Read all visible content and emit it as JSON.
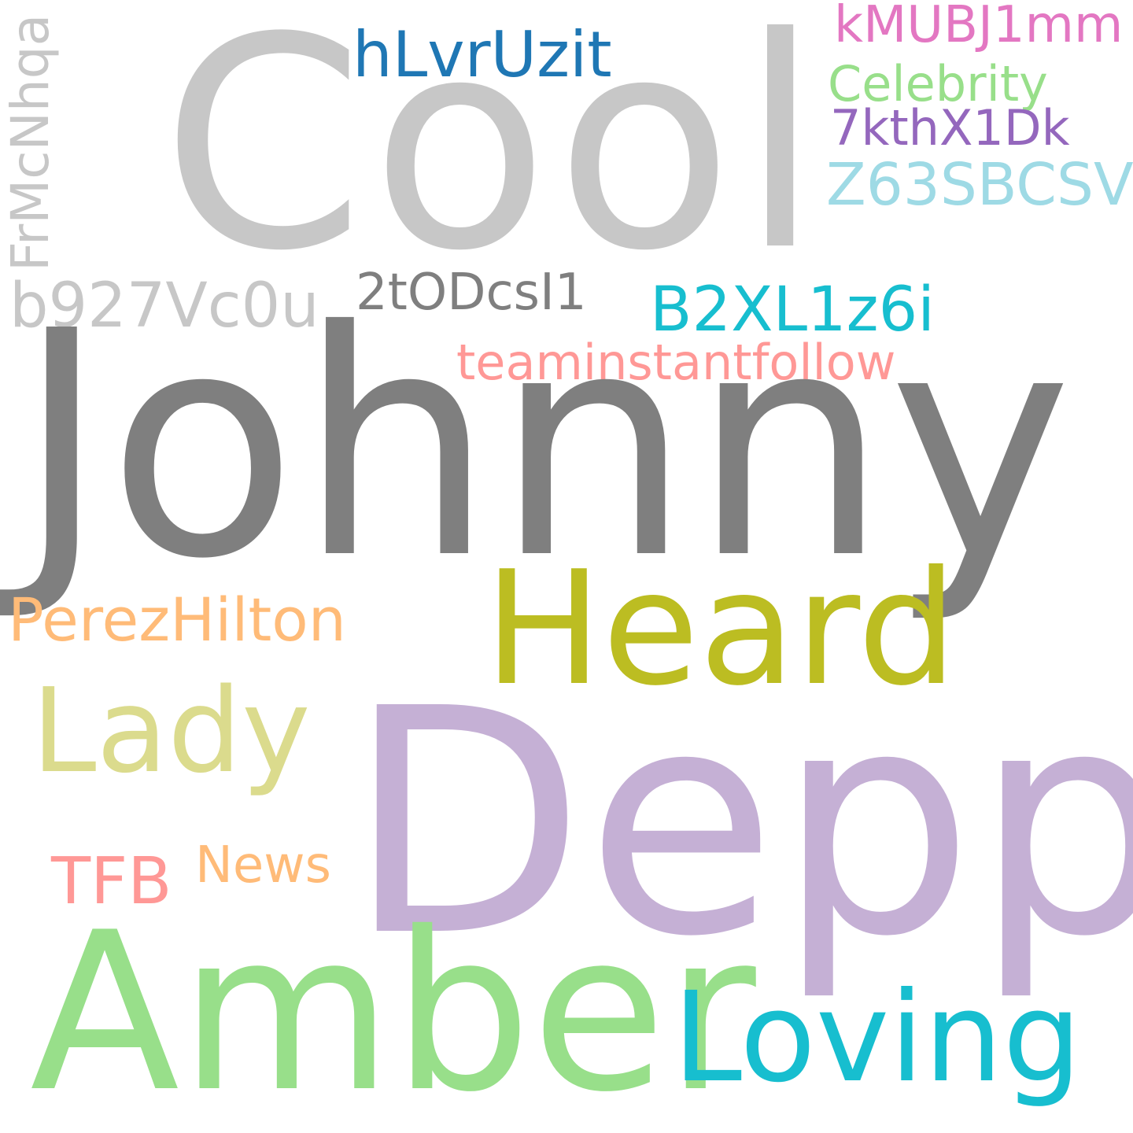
{
  "words": [
    {
      "key": "cool",
      "text": "Cool",
      "color": "#c7c7c7"
    },
    {
      "key": "hlvruzit",
      "text": "hLvrUzit",
      "color": "#1f77b4"
    },
    {
      "key": "kmubj",
      "text": "kMUBJ1mm",
      "color": "#e377c2"
    },
    {
      "key": "celebrity",
      "text": "Celebrity",
      "color": "#98df8a"
    },
    {
      "key": "7kth",
      "text": "7kthX1Dk",
      "color": "#9467bd"
    },
    {
      "key": "z63",
      "text": "Z63SBCSV",
      "color": "#9edae5"
    },
    {
      "key": "frmc",
      "text": "FrMcNhqa",
      "color": "#c7c7c7"
    },
    {
      "key": "b927",
      "text": "b927Vc0u",
      "color": "#c7c7c7"
    },
    {
      "key": "2t0",
      "text": "2tODcsI1",
      "color": "#7f7f7f"
    },
    {
      "key": "b2xl",
      "text": "B2XL1z6i",
      "color": "#17becf"
    },
    {
      "key": "team",
      "text": "teaminstantfollow",
      "color": "#ff9896"
    },
    {
      "key": "johnny",
      "text": "Johnny",
      "color": "#7f7f7f"
    },
    {
      "key": "perez",
      "text": "PerezHilton",
      "color": "#ffbb78"
    },
    {
      "key": "heard",
      "text": "Heard",
      "color": "#bcbd22"
    },
    {
      "key": "lady",
      "text": "Lady",
      "color": "#dbdb8d"
    },
    {
      "key": "depp",
      "text": "Depp",
      "color": "#c5b0d5"
    },
    {
      "key": "news",
      "text": "News",
      "color": "#ffbb78"
    },
    {
      "key": "tfb",
      "text": "TFB",
      "color": "#ff9896"
    },
    {
      "key": "amber",
      "text": "Amber",
      "color": "#98df8a"
    },
    {
      "key": "loving",
      "text": "Loving",
      "color": "#17becf"
    }
  ]
}
